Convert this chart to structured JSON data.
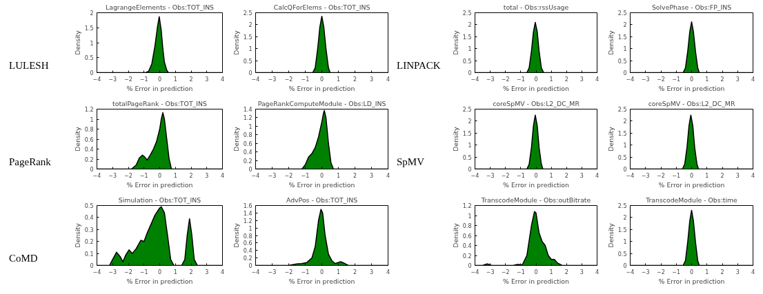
{
  "chart_data": [
    {
      "type": "area",
      "title": "LagrangeElements - Obs:TOT_INS",
      "xlabel": "% Error in prediction",
      "ylabel": "Density",
      "annotations": [
        "LULESH"
      ],
      "color": "#008000",
      "x": [
        -4,
        -0.9,
        -0.7,
        -0.5,
        -0.3,
        -0.15,
        -0.03,
        0.1,
        0.2,
        0.3,
        0.45,
        0.55,
        4
      ],
      "values": [
        0,
        0,
        0.05,
        0.3,
        0.9,
        1.5,
        1.87,
        1.4,
        0.8,
        0.35,
        0.08,
        0,
        0
      ],
      "xlim": [
        -4,
        4
      ],
      "xticks": [
        -4,
        -3,
        -2,
        -1,
        0,
        1,
        2,
        3,
        4
      ],
      "ylim": [
        0,
        2
      ],
      "yticks": [
        0,
        0.5,
        1,
        1.5,
        2
      ]
    },
    {
      "type": "area",
      "title": "CalcQForElems - Obs:TOT_INS",
      "xlabel": "% Error in prediction",
      "ylabel": "Density",
      "color": "#008000",
      "x": [
        -4,
        -0.55,
        -0.4,
        -0.25,
        -0.12,
        0,
        0.12,
        0.25,
        0.4,
        0.5,
        4
      ],
      "values": [
        0,
        0,
        0.2,
        1.0,
        1.9,
        2.35,
        1.9,
        1.0,
        0.2,
        0,
        0
      ],
      "xlim": [
        -4,
        4
      ],
      "xticks": [
        -4,
        -3,
        -2,
        -1,
        0,
        1,
        2,
        3,
        4
      ],
      "ylim": [
        0,
        2.5
      ],
      "yticks": [
        0,
        0.5,
        1,
        1.5,
        2,
        2.5
      ]
    },
    {
      "type": "area",
      "title": "total - Obs:rssUsage",
      "xlabel": "% Error in prediction",
      "ylabel": "Density",
      "annotations": [
        "LINPACK"
      ],
      "color": "#008000",
      "x": [
        -4,
        -0.6,
        -0.45,
        -0.3,
        -0.17,
        -0.05,
        0.08,
        0.2,
        0.35,
        0.5,
        4
      ],
      "values": [
        0,
        0,
        0.2,
        0.9,
        1.7,
        2.1,
        1.7,
        0.9,
        0.2,
        0,
        0
      ],
      "xlim": [
        -4,
        4
      ],
      "xticks": [
        -4,
        -3,
        -2,
        -1,
        0,
        1,
        2,
        3,
        4
      ],
      "ylim": [
        0,
        2.5
      ],
      "yticks": [
        0,
        0.5,
        1,
        1.5,
        2,
        2.5
      ]
    },
    {
      "type": "area",
      "title": "SolvePhase - Obs:FP_INS",
      "xlabel": "% Error in prediction",
      "ylabel": "Density",
      "color": "#008000",
      "x": [
        -4,
        -0.55,
        -0.4,
        -0.25,
        -0.12,
        0,
        0.12,
        0.25,
        0.4,
        0.5,
        4
      ],
      "values": [
        0,
        0,
        0.2,
        0.9,
        1.7,
        2.12,
        1.7,
        0.9,
        0.2,
        0,
        0
      ],
      "xlim": [
        -4,
        4
      ],
      "xticks": [
        -4,
        -3,
        -2,
        -1,
        0,
        1,
        2,
        3,
        4
      ],
      "ylim": [
        0,
        2.5
      ],
      "yticks": [
        0,
        0.5,
        1,
        1.5,
        2,
        2.5
      ]
    },
    {
      "type": "area",
      "title": "totalPageRank - Obs:TOT_INS",
      "xlabel": "% Error in prediction",
      "ylabel": "Density",
      "annotations": [
        "PageRank"
      ],
      "color": "#008000",
      "x": [
        -4,
        -1.8,
        -1.5,
        -1.3,
        -1.1,
        -0.95,
        -0.8,
        -0.6,
        -0.4,
        -0.2,
        0,
        0.1,
        0.2,
        0.3,
        0.45,
        0.6,
        0.75,
        4
      ],
      "values": [
        0,
        0,
        0.08,
        0.22,
        0.28,
        0.24,
        0.18,
        0.28,
        0.4,
        0.55,
        0.8,
        1.0,
        1.13,
        1.0,
        0.6,
        0.2,
        0,
        0
      ],
      "xlim": [
        -4,
        4
      ],
      "xticks": [
        -4,
        -3,
        -2,
        -1,
        0,
        1,
        2,
        3,
        4
      ],
      "ylim": [
        0,
        1.2
      ],
      "yticks": [
        0,
        0.2,
        0.4,
        0.6,
        0.8,
        1,
        1.2
      ]
    },
    {
      "type": "area",
      "title": "PageRankComputeModule - Obs:LD_INS",
      "xlabel": "% Error in prediction",
      "ylabel": "Density",
      "color": "#008000",
      "x": [
        -4,
        -1.2,
        -1.0,
        -0.8,
        -0.6,
        -0.4,
        -0.2,
        0,
        0.1,
        0.15,
        0.25,
        0.4,
        0.55,
        0.7,
        4
      ],
      "values": [
        0,
        0,
        0.1,
        0.28,
        0.36,
        0.5,
        0.75,
        1.1,
        1.3,
        1.37,
        1.2,
        0.6,
        0.15,
        0,
        0
      ],
      "xlim": [
        -4,
        4
      ],
      "xticks": [
        -4,
        -3,
        -2,
        -1,
        0,
        1,
        2,
        3,
        4
      ],
      "ylim": [
        0,
        1.4
      ],
      "yticks": [
        0,
        0.2,
        0.4,
        0.6,
        0.8,
        1,
        1.2,
        1.4
      ]
    },
    {
      "type": "area",
      "title": "coreSpMV - Obs:L2_DC_MR",
      "xlabel": "% Error in prediction",
      "ylabel": "Density",
      "annotations": [
        "SpMV"
      ],
      "color": "#008000",
      "x": [
        -4,
        -0.6,
        -0.45,
        -0.3,
        -0.17,
        -0.05,
        0.08,
        0.2,
        0.35,
        0.45,
        4
      ],
      "values": [
        0,
        0,
        0.2,
        0.9,
        1.8,
        2.25,
        1.8,
        0.9,
        0.2,
        0,
        0
      ],
      "xlim": [
        -4,
        4
      ],
      "xticks": [
        -4,
        -3,
        -2,
        -1,
        0,
        1,
        2,
        3,
        4
      ],
      "ylim": [
        0,
        2.5
      ],
      "yticks": [
        0,
        0.5,
        1,
        1.5,
        2,
        2.5
      ]
    },
    {
      "type": "area",
      "title": "coreSpMV - Obs:L2_DC_MR",
      "xlabel": "% Error in prediction",
      "ylabel": "Density",
      "color": "#008000",
      "x": [
        -4,
        -0.6,
        -0.45,
        -0.3,
        -0.17,
        -0.05,
        0.08,
        0.2,
        0.35,
        0.45,
        4
      ],
      "values": [
        0,
        0,
        0.2,
        0.9,
        1.8,
        2.25,
        1.8,
        0.9,
        0.2,
        0,
        0
      ],
      "xlim": [
        -4,
        4
      ],
      "xticks": [
        -4,
        -3,
        -2,
        -1,
        0,
        1,
        2,
        3,
        4
      ],
      "ylim": [
        0,
        2.5
      ],
      "yticks": [
        0,
        0.5,
        1,
        1.5,
        2,
        2.5
      ]
    },
    {
      "type": "area",
      "title": "Simulation - Obs:TOT_INS",
      "xlabel": "% Error in prediction",
      "ylabel": "Density",
      "annotations": [
        "CoMD"
      ],
      "color": "#008000",
      "x": [
        -4,
        -3.2,
        -3.0,
        -2.75,
        -2.5,
        -2.35,
        -2.15,
        -1.95,
        -1.75,
        -1.5,
        -1.2,
        -1.0,
        -0.8,
        -0.6,
        -0.3,
        0,
        0.1,
        0.3,
        0.5,
        0.7,
        0.9,
        1.4,
        1.6,
        1.75,
        1.9,
        2.05,
        2.2,
        2.4,
        4
      ],
      "values": [
        0,
        0,
        0.05,
        0.11,
        0.07,
        0.03,
        0.09,
        0.13,
        0.1,
        0.14,
        0.21,
        0.2,
        0.27,
        0.33,
        0.42,
        0.48,
        0.49,
        0.44,
        0.25,
        0.05,
        0,
        0,
        0.05,
        0.25,
        0.39,
        0.25,
        0.05,
        0,
        0
      ],
      "xlim": [
        -4,
        4
      ],
      "xticks": [
        -4,
        -3,
        -2,
        -1,
        0,
        1,
        2,
        3,
        4
      ],
      "ylim": [
        0,
        0.5
      ],
      "yticks": [
        0,
        0.1,
        0.2,
        0.3,
        0.4,
        0.5
      ]
    },
    {
      "type": "area",
      "title": "AdvPos - Obs:TOT_INS",
      "xlabel": "% Error in prediction",
      "ylabel": "Density",
      "color": "#008000",
      "x": [
        -4,
        -2,
        -1.5,
        -1.2,
        -0.9,
        -0.6,
        -0.4,
        -0.2,
        -0.05,
        0.05,
        0.2,
        0.4,
        0.6,
        0.8,
        1.0,
        1.15,
        1.3,
        1.6,
        4
      ],
      "values": [
        0,
        0,
        0.04,
        0.05,
        0.08,
        0.2,
        0.5,
        1.2,
        1.5,
        1.4,
        0.8,
        0.3,
        0.13,
        0.05,
        0.08,
        0.1,
        0.07,
        0,
        0
      ],
      "xlim": [
        -4,
        4
      ],
      "xticks": [
        -4,
        -3,
        -2,
        -1,
        0,
        1,
        2,
        3,
        4
      ],
      "ylim": [
        0,
        1.6
      ],
      "yticks": [
        0,
        0.2,
        0.4,
        0.6,
        0.8,
        1,
        1.2,
        1.4,
        1.6
      ]
    },
    {
      "type": "area",
      "title": "TranscodeModule - Obs:outBitrate",
      "xlabel": "% Error in prediction",
      "ylabel": "Density",
      "color": "#008000",
      "x": [
        -4,
        -3.5,
        -3.2,
        -2.9,
        -1.5,
        -1.2,
        -0.9,
        -0.6,
        -0.3,
        -0.1,
        0,
        0.2,
        0.4,
        0.6,
        0.8,
        1.0,
        1.2,
        1.4,
        1.7,
        4
      ],
      "values": [
        0,
        0,
        0.03,
        0,
        0,
        0.02,
        0.01,
        0.2,
        0.8,
        1.08,
        1.05,
        0.65,
        0.48,
        0.4,
        0.2,
        0.12,
        0.12,
        0.05,
        0,
        0
      ],
      "xlim": [
        -4,
        4
      ],
      "xticks": [
        -4,
        -3,
        -2,
        -1,
        0,
        1,
        2,
        3,
        4
      ],
      "ylim": [
        0,
        1.2
      ],
      "yticks": [
        0,
        0.2,
        0.4,
        0.6,
        0.8,
        1,
        1.2
      ]
    },
    {
      "type": "area",
      "title": "TranscodeModule - Obs:time",
      "xlabel": "% Error in prediction",
      "ylabel": "Density",
      "color": "#008000",
      "x": [
        -4,
        -0.55,
        -0.4,
        -0.25,
        -0.12,
        0,
        0.12,
        0.25,
        0.4,
        0.5,
        4
      ],
      "values": [
        0,
        0,
        0.2,
        1.0,
        1.85,
        2.3,
        1.85,
        1.0,
        0.2,
        0,
        0
      ],
      "xlim": [
        -4,
        4
      ],
      "xticks": [
        -4,
        -3,
        -2,
        -1,
        0,
        1,
        2,
        3,
        4
      ],
      "ylim": [
        0,
        2.5
      ],
      "yticks": [
        0,
        0.5,
        1,
        1.5,
        2,
        2.5
      ]
    }
  ]
}
